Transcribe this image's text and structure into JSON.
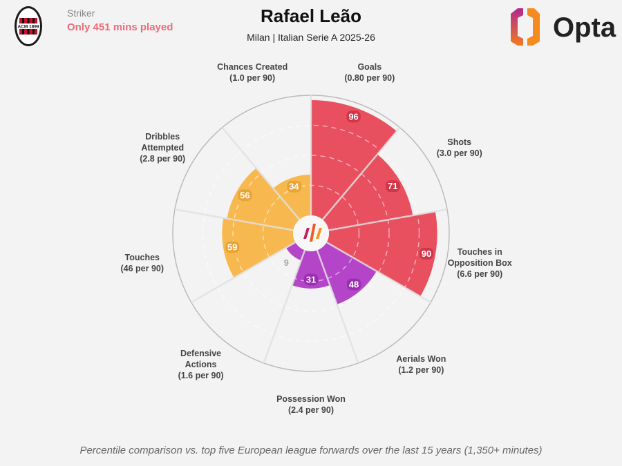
{
  "header": {
    "role": "Striker",
    "minutes_note": "Only 451 mins played",
    "title": "Rafael Leão",
    "subtitle": "Milan | Italian Serie A 2025-26",
    "brand": "Opta",
    "club_crest_text": "ACM 1899"
  },
  "footer": "Percentile comparison vs. top five European league forwards over the last 15 years (1,350+ minutes)",
  "chart_data": {
    "type": "polar-bar",
    "title": "Rafael Leão",
    "range": [
      0,
      100
    ],
    "rings": [
      25,
      50,
      75
    ],
    "categories": [
      "Goals",
      "Shots",
      "Touches in Opposition Box",
      "Aerials Won",
      "Possession Won",
      "Defensive Actions",
      "Touches",
      "Dribbles Attempted",
      "Chances Created"
    ],
    "label_lines": [
      [
        "Goals",
        "(0.80 per 90)"
      ],
      [
        "Shots",
        "(3.0 per 90)"
      ],
      [
        "Touches in",
        "Opposition Box",
        "(6.6 per 90)"
      ],
      [
        "Aerials Won",
        "(1.2 per 90)"
      ],
      [
        "Possession Won",
        "(2.4 per 90)"
      ],
      [
        "Defensive",
        "Actions",
        "(1.6 per 90)"
      ],
      [
        "Touches",
        "(46 per 90)"
      ],
      [
        "Dribbles",
        "Attempted",
        "(2.8 per 90)"
      ],
      [
        "Chances Created",
        "(1.0 per 90)"
      ]
    ],
    "values": [
      96,
      71,
      90,
      48,
      31,
      9,
      59,
      56,
      34
    ],
    "groups": [
      "attacking",
      "attacking",
      "attacking",
      "defending",
      "defending",
      "defending",
      "possession",
      "possession",
      "possession"
    ],
    "colors": {
      "attacking": "#e9505f",
      "defending": "#b445c9",
      "possession": "#f7b94f",
      "attacking_badge": "#d2344a",
      "defending_badge": "#9a2fb0",
      "possession_badge": "#e9a436"
    }
  }
}
